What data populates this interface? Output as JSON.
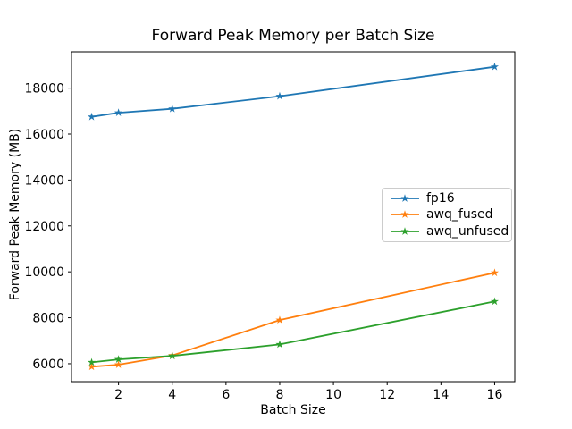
{
  "figure": {
    "title": "Forward Peak Memory per Batch Size"
  },
  "chart_data": {
    "type": "line",
    "title": "Forward Peak Memory per Batch Size",
    "xlabel": "Batch Size",
    "ylabel": "Forward Peak Memory (MB)",
    "x": [
      1,
      2,
      4,
      8,
      16
    ],
    "series": [
      {
        "name": "fp16",
        "color": "#1f77b4",
        "marker": "star",
        "values": [
          16750,
          16930,
          17100,
          17650,
          18930
        ]
      },
      {
        "name": "awq_fused",
        "color": "#ff7f0e",
        "marker": "star",
        "values": [
          5870,
          5960,
          6360,
          7900,
          9960
        ]
      },
      {
        "name": "awq_unfused",
        "color": "#2ca02c",
        "marker": "star",
        "values": [
          6060,
          6190,
          6340,
          6840,
          8710
        ]
      }
    ],
    "xticks": [
      2,
      4,
      6,
      8,
      10,
      12,
      14,
      16
    ],
    "yticks": [
      6000,
      8000,
      10000,
      12000,
      14000,
      16000,
      18000
    ],
    "xlim": [
      0.25,
      16.75
    ],
    "ylim": [
      5220,
      19580
    ],
    "grid": false,
    "legend_position": "center-right",
    "axis_color": "#000000",
    "background_color": "#ffffff"
  }
}
